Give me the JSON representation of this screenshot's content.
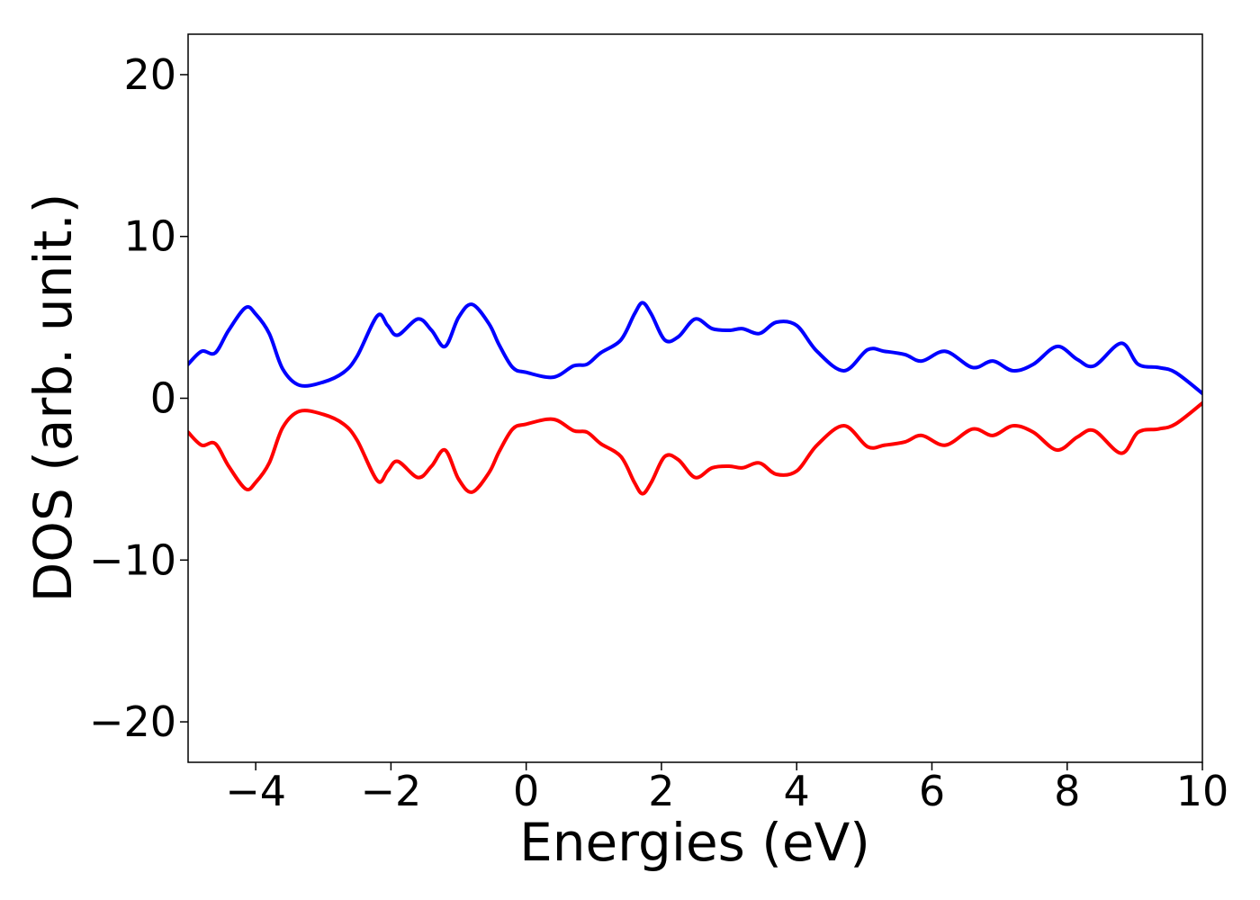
{
  "chart_data": {
    "type": "line",
    "title": "",
    "xlabel": "Energies (eV)",
    "ylabel": "DOS (arb. unit.)",
    "xlim": [
      -5,
      10
    ],
    "ylim": [
      -22.5,
      22.5
    ],
    "xticks": [
      -4,
      -2,
      0,
      2,
      4,
      6,
      8,
      10
    ],
    "xtick_labels": [
      "−4",
      "−2",
      "0",
      "2",
      "4",
      "6",
      "8",
      "10"
    ],
    "yticks": [
      -20,
      -10,
      0,
      10,
      20
    ],
    "ytick_labels": [
      "−20",
      "−10",
      "0",
      "10",
      "20"
    ],
    "grid": false,
    "legend": "none",
    "series": [
      {
        "color": "#0000ff",
        "x": [
          -5.0,
          -4.8,
          -4.6,
          -4.4,
          -4.15,
          -4.0,
          -3.8,
          -3.6,
          -3.35,
          -3.0,
          -2.7,
          -2.5,
          -2.2,
          -2.05,
          -1.9,
          -1.6,
          -1.4,
          -1.2,
          -1.0,
          -0.8,
          -0.55,
          -0.4,
          -0.2,
          0.0,
          0.4,
          0.7,
          0.9,
          1.1,
          1.4,
          1.6,
          1.72,
          1.85,
          2.05,
          2.25,
          2.5,
          2.75,
          3.0,
          3.2,
          3.45,
          3.7,
          4.0,
          4.3,
          4.7,
          5.05,
          5.3,
          5.6,
          5.85,
          6.2,
          6.6,
          6.9,
          7.2,
          7.5,
          7.85,
          8.15,
          8.4,
          8.8,
          9.05,
          9.35,
          9.6,
          10.0
        ],
        "y": [
          2.1,
          2.9,
          2.8,
          4.2,
          5.6,
          5.2,
          4.0,
          1.8,
          0.8,
          1.0,
          1.6,
          2.6,
          5.1,
          4.5,
          3.9,
          4.9,
          4.2,
          3.2,
          5.0,
          5.8,
          4.6,
          3.3,
          1.9,
          1.6,
          1.3,
          2.0,
          2.1,
          2.8,
          3.6,
          5.2,
          5.9,
          5.2,
          3.6,
          3.8,
          4.9,
          4.3,
          4.2,
          4.3,
          4.0,
          4.7,
          4.5,
          2.9,
          1.7,
          3.0,
          2.9,
          2.7,
          2.3,
          2.9,
          1.9,
          2.3,
          1.7,
          2.1,
          3.2,
          2.4,
          2.0,
          3.4,
          2.1,
          1.9,
          1.6,
          0.3
        ]
      },
      {
        "color": "#ff0000",
        "x": [
          -5.0,
          -4.8,
          -4.6,
          -4.4,
          -4.15,
          -4.0,
          -3.8,
          -3.6,
          -3.35,
          -3.0,
          -2.7,
          -2.5,
          -2.2,
          -2.05,
          -1.9,
          -1.6,
          -1.4,
          -1.2,
          -1.0,
          -0.8,
          -0.55,
          -0.4,
          -0.2,
          0.0,
          0.4,
          0.7,
          0.9,
          1.1,
          1.4,
          1.6,
          1.72,
          1.85,
          2.05,
          2.25,
          2.5,
          2.75,
          3.0,
          3.2,
          3.45,
          3.7,
          4.0,
          4.3,
          4.7,
          5.05,
          5.3,
          5.6,
          5.85,
          6.2,
          6.6,
          6.9,
          7.2,
          7.5,
          7.85,
          8.15,
          8.4,
          8.8,
          9.05,
          9.35,
          9.6,
          10.0
        ],
        "y": [
          -2.1,
          -2.9,
          -2.8,
          -4.2,
          -5.6,
          -5.2,
          -4.0,
          -1.8,
          -0.8,
          -1.0,
          -1.6,
          -2.6,
          -5.1,
          -4.5,
          -3.9,
          -4.9,
          -4.2,
          -3.2,
          -5.0,
          -5.8,
          -4.6,
          -3.3,
          -1.9,
          -1.6,
          -1.3,
          -2.0,
          -2.1,
          -2.8,
          -3.6,
          -5.2,
          -5.9,
          -5.2,
          -3.6,
          -3.8,
          -4.9,
          -4.3,
          -4.2,
          -4.3,
          -4.0,
          -4.7,
          -4.5,
          -2.9,
          -1.7,
          -3.0,
          -2.9,
          -2.7,
          -2.3,
          -2.9,
          -1.9,
          -2.3,
          -1.7,
          -2.1,
          -3.2,
          -2.4,
          -2.0,
          -3.4,
          -2.1,
          -1.9,
          -1.6,
          -0.3
        ]
      }
    ]
  }
}
